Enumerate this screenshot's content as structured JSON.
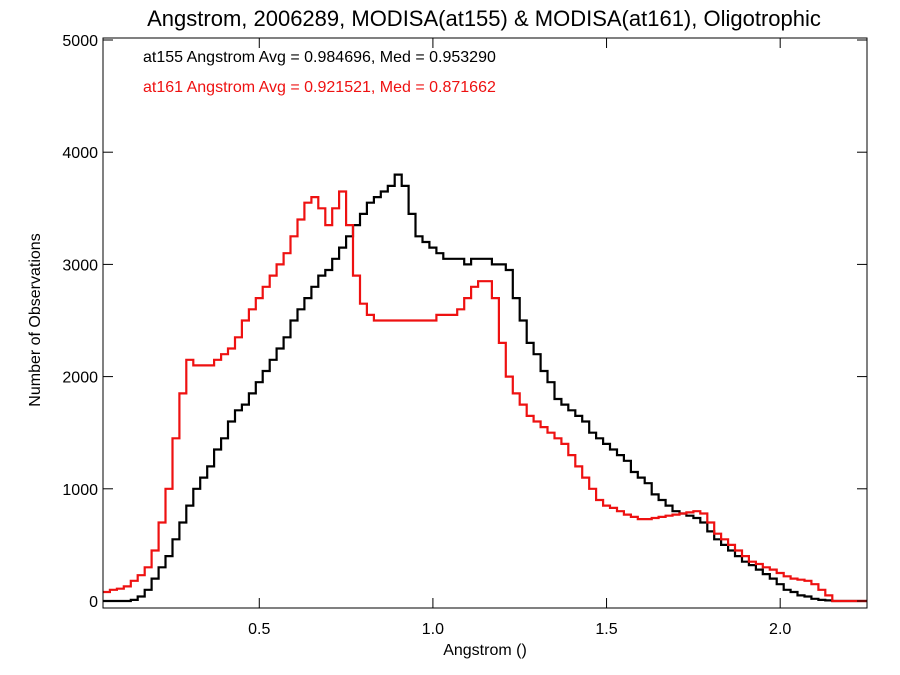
{
  "chart_data": {
    "type": "line",
    "title": "Angstrom, 2006289, MODISA(at155) & MODISA(at161), Oligotrophic",
    "xlabel": "Angstrom ()",
    "ylabel": "Number of Observations",
    "xlim": [
      0.05,
      2.25
    ],
    "ylim": [
      0,
      5000
    ],
    "xticks": [
      0.5,
      1.0,
      1.5,
      2.0
    ],
    "xtick_labels": [
      "0.5",
      "1.0",
      "1.5",
      "2.0"
    ],
    "yticks": [
      0,
      1000,
      2000,
      3000,
      4000,
      5000
    ],
    "ytick_labels": [
      "0",
      "1000",
      "2000",
      "3000",
      "4000",
      "5000"
    ],
    "grid": false,
    "annotations": [
      {
        "text": "at155 Angstrom Avg = 0.984696, Med = 0.953290",
        "color": "#000000"
      },
      {
        "text": "at161 Angstrom Avg = 0.921521, Med = 0.871662",
        "color": "#ee1111"
      }
    ],
    "series": [
      {
        "color": "#000000",
        "x": [
          0.05,
          0.1,
          0.13,
          0.15,
          0.17,
          0.19,
          0.21,
          0.23,
          0.25,
          0.27,
          0.29,
          0.31,
          0.33,
          0.35,
          0.37,
          0.39,
          0.41,
          0.43,
          0.45,
          0.47,
          0.49,
          0.51,
          0.53,
          0.55,
          0.57,
          0.59,
          0.61,
          0.63,
          0.65,
          0.67,
          0.69,
          0.71,
          0.73,
          0.75,
          0.77,
          0.79,
          0.81,
          0.83,
          0.85,
          0.87,
          0.89,
          0.91,
          0.93,
          0.95,
          0.97,
          0.99,
          1.01,
          1.03,
          1.05,
          1.07,
          1.09,
          1.11,
          1.13,
          1.15,
          1.17,
          1.19,
          1.21,
          1.23,
          1.25,
          1.27,
          1.29,
          1.31,
          1.33,
          1.35,
          1.37,
          1.39,
          1.41,
          1.43,
          1.45,
          1.47,
          1.49,
          1.51,
          1.53,
          1.55,
          1.57,
          1.59,
          1.61,
          1.63,
          1.65,
          1.67,
          1.69,
          1.71,
          1.73,
          1.75,
          1.77,
          1.79,
          1.81,
          1.83,
          1.85,
          1.87,
          1.89,
          1.91,
          1.93,
          1.95,
          1.97,
          1.99,
          2.01,
          2.03,
          2.05,
          2.07,
          2.09,
          2.11,
          2.13,
          2.15,
          2.17,
          2.25
        ],
        "y": [
          0,
          0,
          10,
          40,
          100,
          200,
          300,
          400,
          550,
          700,
          850,
          1000,
          1100,
          1200,
          1350,
          1450,
          1600,
          1700,
          1750,
          1850,
          1950,
          2050,
          2150,
          2250,
          2350,
          2500,
          2600,
          2700,
          2800,
          2900,
          2950,
          3050,
          3150,
          3250,
          3350,
          3450,
          3550,
          3600,
          3650,
          3700,
          3800,
          3700,
          3450,
          3250,
          3200,
          3150,
          3100,
          3050,
          3050,
          3050,
          3000,
          3050,
          3050,
          3050,
          3000,
          3000,
          2950,
          2700,
          2500,
          2300,
          2200,
          2050,
          1950,
          1800,
          1750,
          1700,
          1650,
          1600,
          1500,
          1450,
          1400,
          1350,
          1300,
          1250,
          1150,
          1100,
          1050,
          950,
          900,
          850,
          800,
          780,
          760,
          740,
          700,
          620,
          550,
          500,
          450,
          400,
          350,
          320,
          280,
          240,
          200,
          150,
          100,
          80,
          50,
          40,
          20,
          10,
          5,
          0,
          0,
          0
        ]
      },
      {
        "color": "#ee1111",
        "x": [
          0.05,
          0.07,
          0.09,
          0.11,
          0.13,
          0.15,
          0.17,
          0.19,
          0.21,
          0.23,
          0.25,
          0.27,
          0.29,
          0.31,
          0.33,
          0.35,
          0.37,
          0.39,
          0.41,
          0.43,
          0.45,
          0.47,
          0.49,
          0.51,
          0.53,
          0.55,
          0.57,
          0.59,
          0.61,
          0.63,
          0.65,
          0.67,
          0.69,
          0.71,
          0.73,
          0.75,
          0.77,
          0.79,
          0.81,
          0.83,
          0.85,
          0.87,
          0.89,
          0.91,
          0.93,
          0.95,
          0.97,
          0.99,
          1.01,
          1.03,
          1.05,
          1.07,
          1.09,
          1.11,
          1.13,
          1.15,
          1.17,
          1.19,
          1.21,
          1.23,
          1.25,
          1.27,
          1.29,
          1.31,
          1.33,
          1.35,
          1.37,
          1.39,
          1.41,
          1.43,
          1.45,
          1.47,
          1.49,
          1.51,
          1.53,
          1.55,
          1.57,
          1.59,
          1.61,
          1.63,
          1.65,
          1.67,
          1.69,
          1.71,
          1.73,
          1.75,
          1.77,
          1.79,
          1.81,
          1.83,
          1.85,
          1.87,
          1.89,
          1.91,
          1.93,
          1.95,
          1.97,
          1.99,
          2.01,
          2.03,
          2.05,
          2.07,
          2.09,
          2.11,
          2.13,
          2.15,
          2.17,
          2.25
        ],
        "y": [
          80,
          100,
          110,
          130,
          180,
          230,
          300,
          450,
          700,
          1000,
          1450,
          1850,
          2150,
          2100,
          2100,
          2100,
          2150,
          2200,
          2250,
          2350,
          2500,
          2600,
          2700,
          2800,
          2900,
          3000,
          3100,
          3250,
          3400,
          3550,
          3600,
          3500,
          3350,
          3500,
          3650,
          3350,
          2900,
          2650,
          2550,
          2500,
          2500,
          2500,
          2500,
          2500,
          2500,
          2500,
          2500,
          2500,
          2550,
          2550,
          2550,
          2600,
          2700,
          2800,
          2850,
          2850,
          2700,
          2300,
          2000,
          1850,
          1750,
          1650,
          1600,
          1550,
          1500,
          1450,
          1400,
          1300,
          1200,
          1100,
          1000,
          900,
          850,
          830,
          800,
          770,
          750,
          730,
          730,
          740,
          750,
          760,
          770,
          780,
          790,
          800,
          780,
          700,
          600,
          550,
          500,
          450,
          400,
          350,
          330,
          300,
          280,
          250,
          220,
          200,
          190,
          180,
          150,
          100,
          50,
          0,
          0,
          0
        ]
      }
    ]
  }
}
